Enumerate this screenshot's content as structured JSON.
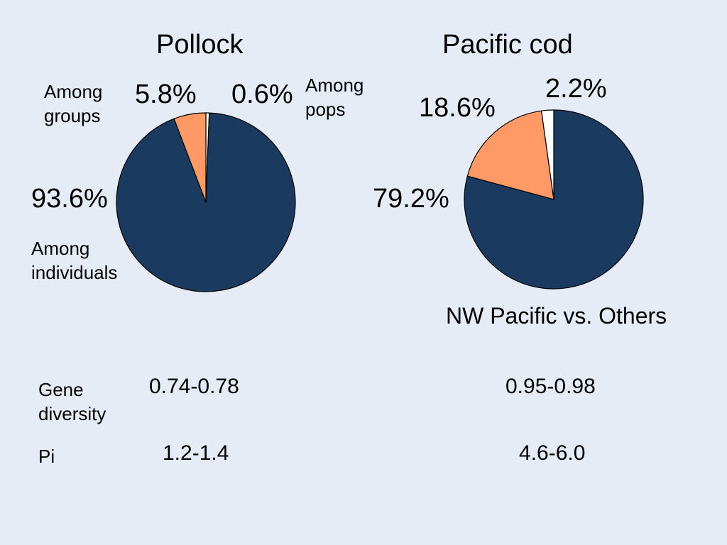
{
  "colors": {
    "background": "#e5ecf5",
    "among_individuals": "#1a3a60",
    "among_groups": "#ff9966",
    "among_pops": "#ffffff",
    "outline": "#000000"
  },
  "chart_data": [
    {
      "type": "pie",
      "title": "Pollock",
      "slices": [
        {
          "label": "Among pops",
          "label_lines": [
            "Among",
            "pops"
          ],
          "value": 0.6,
          "value_label": "0.6%",
          "color": "#ffffff"
        },
        {
          "label": "Among individuals",
          "label_lines": [
            "Among",
            "individuals"
          ],
          "value": 93.6,
          "value_label": "93.6%",
          "color": "#1a3a60"
        },
        {
          "label": "Among groups",
          "label_lines": [
            "Among",
            "groups"
          ],
          "value": 5.8,
          "value_label": "5.8%",
          "color": "#ff9966"
        }
      ]
    },
    {
      "type": "pie",
      "title": "Pacific cod",
      "subtitle": "NW Pacific vs. Others",
      "slices": [
        {
          "value": 79.2,
          "value_label": "79.2%",
          "color": "#1a3a60"
        },
        {
          "value": 18.6,
          "value_label": "18.6%",
          "color": "#ff9966"
        },
        {
          "value": 2.2,
          "value_label": "2.2%",
          "color": "#ffffff"
        }
      ]
    }
  ],
  "stats": {
    "gene_diversity": {
      "label_lines": [
        "Gene",
        "diversity"
      ],
      "pollock": "0.74-0.78",
      "cod": "0.95-0.98"
    },
    "pi": {
      "label": "Pi",
      "pollock": "1.2-1.4",
      "cod": "4.6-6.0"
    }
  }
}
